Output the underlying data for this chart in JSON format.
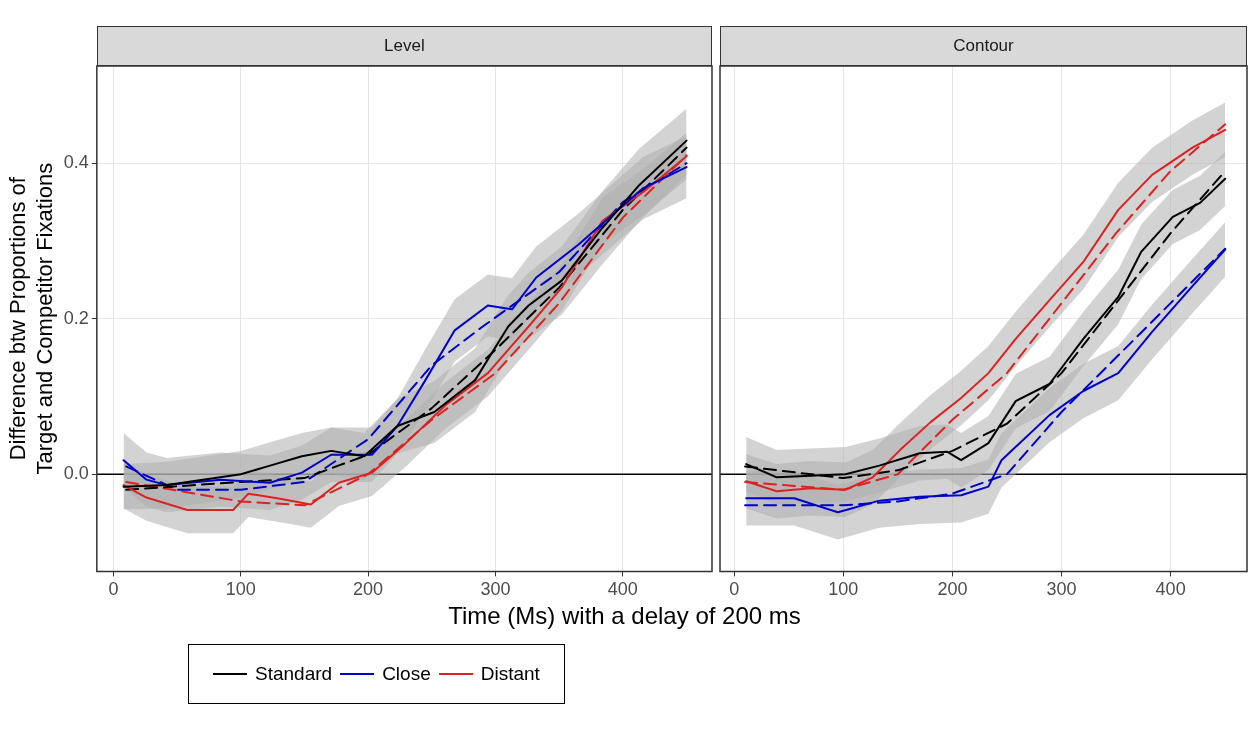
{
  "chart_data": [
    {
      "type": "line",
      "title": "Level",
      "xlabel": "Time (Ms) with a delay of 200 ms",
      "ylabel": "Difference btw Proportions of\nTarget and Competitor Fixations",
      "xlim": [
        -13,
        470
      ],
      "ylim": [
        -0.125,
        0.525
      ],
      "xticks": [
        0,
        100,
        200,
        300,
        400
      ],
      "yticks": [
        {
          "value": 0,
          "label": "0.0"
        },
        {
          "value": 0.2,
          "label": "0.2"
        },
        {
          "value": 0.4,
          "label": "0.4"
        }
      ],
      "grid": true,
      "legend": "bottom",
      "ref_lines": [
        {
          "axis": "y",
          "value": 0,
          "color": "#000000"
        }
      ],
      "series": [
        {
          "name": "Standard",
          "color": "#000000",
          "x": [
            8,
            42,
            100,
            123,
            148,
            171,
            197,
            223,
            252,
            284,
            310,
            326,
            352,
            384,
            413,
            450
          ],
          "values": [
            -0.016,
            -0.014,
            0,
            0.011,
            0.023,
            0.03,
            0.023,
            0.062,
            0.08,
            0.121,
            0.19,
            0.217,
            0.249,
            0.317,
            0.372,
            0.429
          ],
          "lower": [
            -0.045,
            -0.044,
            -0.03,
            -0.019,
            -0.007,
            0,
            -0.007,
            0.027,
            0.04,
            0.08,
            0.15,
            0.175,
            0.205,
            0.27,
            0.325,
            0.385
          ],
          "upper": [
            0.013,
            0.016,
            0.03,
            0.041,
            0.053,
            0.06,
            0.053,
            0.097,
            0.12,
            0.162,
            0.23,
            0.259,
            0.293,
            0.364,
            0.419,
            0.47
          ]
        },
        {
          "name": "Close",
          "color": "#0000cc",
          "x": [
            8,
            26,
            42,
            84,
            123,
            148,
            171,
            203,
            223,
            245,
            268,
            294,
            313,
            332,
            365,
            390,
            416,
            450
          ],
          "values": [
            0.018,
            -0.007,
            -0.014,
            -0.007,
            -0.011,
            0.002,
            0.025,
            0.025,
            0.062,
            0.121,
            0.185,
            0.217,
            0.212,
            0.253,
            0.295,
            0.331,
            0.368,
            0.395
          ],
          "lower": [
            -0.017,
            -0.042,
            -0.049,
            -0.042,
            -0.046,
            -0.033,
            -0.01,
            -0.01,
            0.027,
            0.081,
            0.145,
            0.177,
            0.172,
            0.213,
            0.255,
            0.291,
            0.328,
            0.355
          ],
          "upper": [
            0.053,
            0.028,
            0.021,
            0.028,
            0.024,
            0.037,
            0.06,
            0.06,
            0.097,
            0.161,
            0.225,
            0.257,
            0.252,
            0.293,
            0.335,
            0.371,
            0.408,
            0.435
          ]
        },
        {
          "name": "Distant",
          "color": "#dd2222",
          "x": [
            8,
            26,
            58,
            94,
            106,
            132,
            155,
            177,
            203,
            229,
            261,
            294,
            326,
            352,
            384,
            416,
            450
          ],
          "values": [
            -0.014,
            -0.03,
            -0.046,
            -0.046,
            -0.025,
            -0.032,
            -0.039,
            -0.011,
            0.002,
            0.039,
            0.089,
            0.13,
            0.19,
            0.24,
            0.326,
            0.363,
            0.409
          ],
          "lower": [
            -0.044,
            -0.06,
            -0.076,
            -0.076,
            -0.055,
            -0.062,
            -0.069,
            -0.041,
            -0.028,
            0.009,
            0.059,
            0.1,
            0.16,
            0.21,
            0.296,
            0.333,
            0.379
          ],
          "upper": [
            0.016,
            0,
            -0.016,
            -0.016,
            0.005,
            -0.002,
            -0.009,
            0.019,
            0.032,
            0.069,
            0.119,
            0.16,
            0.22,
            0.27,
            0.356,
            0.393,
            0.439
          ]
        },
        {
          "color": "#000000",
          "line_style": "dashed",
          "x": [
            10,
            100,
            150,
            200,
            250,
            300,
            350,
            400,
            450
          ],
          "values": [
            -0.02,
            -0.01,
            -0.005,
            0.025,
            0.085,
            0.16,
            0.24,
            0.34,
            0.42
          ]
        },
        {
          "color": "#0000cc",
          "line_style": "dashed",
          "x": [
            10,
            50,
            100,
            150,
            200,
            250,
            290,
            350,
            400,
            450
          ],
          "values": [
            0.01,
            -0.02,
            -0.02,
            -0.01,
            0.045,
            0.14,
            0.19,
            0.26,
            0.35,
            0.4
          ]
        },
        {
          "color": "#dd2222",
          "line_style": "dashed",
          "x": [
            10,
            100,
            150,
            200,
            250,
            300,
            350,
            400,
            450
          ],
          "values": [
            -0.01,
            -0.035,
            -0.04,
            0,
            0.07,
            0.13,
            0.22,
            0.33,
            0.41
          ]
        }
      ]
    },
    {
      "type": "line",
      "title": "Contour",
      "xlim": [
        -13,
        470
      ],
      "ylim": [
        -0.125,
        0.525
      ],
      "xticks": [
        0,
        100,
        200,
        300,
        400
      ],
      "yticks": [
        0,
        0.2,
        0.4
      ],
      "grid": true,
      "tick_labels": "x",
      "ref_lines": [
        {
          "axis": "y",
          "value": 0,
          "color": "#000000"
        }
      ],
      "series": [
        {
          "color": "#000000",
          "x": [
            11,
            39,
            70,
            102,
            133,
            170,
            195,
            208,
            233,
            258,
            289,
            320,
            352,
            373,
            402,
            427,
            450
          ],
          "values": [
            0.013,
            -0.004,
            -0.002,
            0,
            0.011,
            0.027,
            0.029,
            0.018,
            0.04,
            0.094,
            0.116,
            0.174,
            0.228,
            0.286,
            0.331,
            0.349,
            0.38
          ],
          "lower": [
            -0.022,
            -0.039,
            -0.037,
            -0.035,
            -0.024,
            -0.008,
            -0.006,
            -0.017,
            0.005,
            0.059,
            0.081,
            0.139,
            0.193,
            0.251,
            0.296,
            0.314,
            0.345
          ],
          "upper": [
            0.048,
            0.031,
            0.033,
            0.035,
            0.046,
            0.062,
            0.064,
            0.053,
            0.075,
            0.129,
            0.151,
            0.209,
            0.263,
            0.321,
            0.366,
            0.384,
            0.415
          ]
        },
        {
          "color": "#0000cc",
          "x": [
            11,
            55,
            95,
            133,
            170,
            208,
            233,
            245,
            289,
            320,
            352,
            383,
            420,
            450
          ],
          "values": [
            -0.031,
            -0.031,
            -0.049,
            -0.034,
            -0.029,
            -0.027,
            -0.016,
            0.018,
            0.076,
            0.107,
            0.13,
            0.183,
            0.242,
            0.289
          ],
          "lower": [
            -0.066,
            -0.066,
            -0.084,
            -0.069,
            -0.064,
            -0.062,
            -0.051,
            -0.017,
            0.041,
            0.072,
            0.095,
            0.148,
            0.207,
            0.254
          ],
          "upper": [
            0.004,
            0.004,
            -0.014,
            0.001,
            0.006,
            0.008,
            0.019,
            0.053,
            0.111,
            0.142,
            0.165,
            0.218,
            0.277,
            0.324
          ]
        },
        {
          "color": "#dd2222",
          "x": [
            11,
            39,
            70,
            102,
            127,
            152,
            180,
            208,
            233,
            258,
            289,
            320,
            352,
            383,
            420,
            450
          ],
          "values": [
            -0.009,
            -0.022,
            -0.018,
            -0.02,
            -0.004,
            0.031,
            0.067,
            0.098,
            0.13,
            0.174,
            0.224,
            0.273,
            0.34,
            0.385,
            0.42,
            0.443
          ],
          "lower": [
            -0.044,
            -0.057,
            -0.053,
            -0.055,
            -0.039,
            -0.004,
            0.032,
            0.063,
            0.095,
            0.139,
            0.189,
            0.238,
            0.305,
            0.35,
            0.385,
            0.408
          ],
          "upper": [
            0.026,
            0.013,
            0.017,
            0.015,
            0.031,
            0.066,
            0.102,
            0.133,
            0.165,
            0.209,
            0.259,
            0.308,
            0.375,
            0.42,
            0.455,
            0.478
          ]
        },
        {
          "color": "#000000",
          "line_style": "dashed",
          "x": [
            10,
            100,
            150,
            200,
            250,
            300,
            350,
            400,
            450
          ],
          "values": [
            0.01,
            -0.005,
            0.005,
            0.03,
            0.065,
            0.13,
            0.22,
            0.31,
            0.39
          ]
        },
        {
          "color": "#0000cc",
          "line_style": "dashed",
          "x": [
            10,
            100,
            150,
            200,
            250,
            300,
            350,
            400,
            450
          ],
          "values": [
            -0.04,
            -0.04,
            -0.035,
            -0.025,
            0,
            0.08,
            0.15,
            0.22,
            0.29
          ]
        },
        {
          "color": "#dd2222",
          "line_style": "dashed",
          "x": [
            10,
            100,
            150,
            200,
            250,
            300,
            350,
            400,
            450
          ],
          "values": [
            -0.01,
            -0.02,
            0,
            0.07,
            0.13,
            0.22,
            0.31,
            0.39,
            0.45
          ]
        }
      ]
    }
  ]
}
